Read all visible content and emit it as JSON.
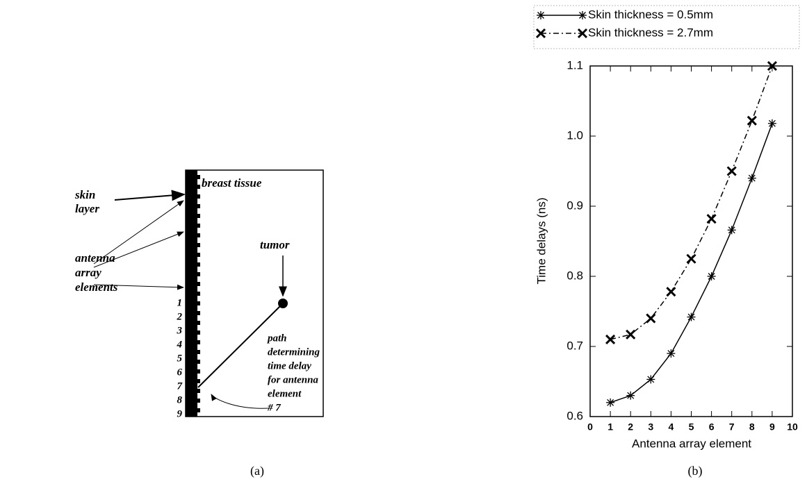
{
  "diagram": {
    "region_label": "breast tissue",
    "skin_label": [
      "skin",
      "layer"
    ],
    "antenna_label": [
      "antenna",
      "array",
      "elements"
    ],
    "tumor_label": "tumor",
    "element_labels": [
      "1",
      "2",
      "3",
      "4",
      "5",
      "6",
      "7",
      "8",
      "9"
    ],
    "path_label": [
      "path",
      "determining",
      "time delay",
      "for antenna",
      "element",
      "# 7"
    ]
  },
  "chart_data": {
    "type": "line",
    "x_label": "Antenna array element",
    "y_label": "Time delays (ns)",
    "x": [
      1,
      2,
      3,
      4,
      5,
      6,
      7,
      8,
      9
    ],
    "series": [
      {
        "name": "Skin thickness = 0.5mm",
        "color": "#000000",
        "marker": "asterisk",
        "dash": "solid",
        "values": [
          0.62,
          0.63,
          0.653,
          0.69,
          0.742,
          0.8,
          0.866,
          0.94,
          1.018
        ]
      },
      {
        "name": "Skin thickness = 2.7mm",
        "color": "#000000",
        "marker": "x",
        "dash": "dashdot",
        "values": [
          0.71,
          0.717,
          0.74,
          0.778,
          0.825,
          0.882,
          0.95,
          1.022,
          1.1
        ]
      }
    ],
    "xlim": [
      0,
      10
    ],
    "xticks": [
      0,
      1,
      2,
      3,
      4,
      5,
      6,
      7,
      8,
      9,
      10
    ],
    "ylim": [
      0.6,
      1.1
    ],
    "yticks": [
      0.6,
      0.7,
      0.8,
      0.9,
      {
        "value": 1,
        "label": "1.0"
      },
      1.1
    ],
    "legend": "top"
  },
  "captions": [
    "(a)",
    "(b)"
  ]
}
